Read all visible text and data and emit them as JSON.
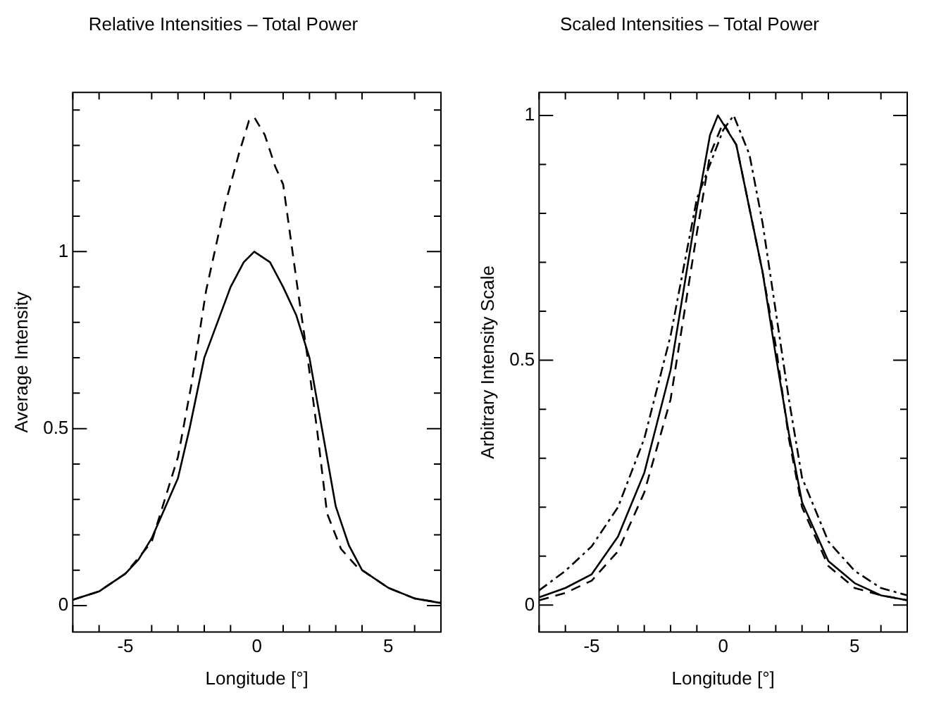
{
  "chart_data": [
    {
      "type": "line",
      "title": "Relative Intensities – Total Power",
      "xlabel": "Longitude [°]",
      "ylabel": "Average Intensity",
      "xlim": [
        -7,
        7
      ],
      "ylim": [
        -0.075,
        1.45
      ],
      "xticks": [
        {
          "value": -7,
          "label": null
        },
        {
          "value": -6,
          "label": null
        },
        -5,
        {
          "value": -4,
          "label": null
        },
        {
          "value": -3,
          "label": null
        },
        {
          "value": -2,
          "label": null
        },
        {
          "value": -1,
          "label": null
        },
        0,
        {
          "value": 1,
          "label": null
        },
        {
          "value": 2,
          "label": null
        },
        {
          "value": 3,
          "label": null
        },
        {
          "value": 4,
          "label": null
        },
        5,
        {
          "value": 6,
          "label": null
        },
        {
          "value": 7,
          "label": null
        }
      ],
      "yticks": [
        0,
        {
          "value": 0.1,
          "label": null
        },
        {
          "value": 0.2,
          "label": null
        },
        {
          "value": 0.3,
          "label": null
        },
        {
          "value": 0.4,
          "label": null
        },
        0.5,
        {
          "value": 0.6,
          "label": null
        },
        {
          "value": 0.7,
          "label": null
        },
        {
          "value": 0.8,
          "label": null
        },
        {
          "value": 0.9,
          "label": null
        },
        1,
        {
          "value": 1.1,
          "label": null
        },
        {
          "value": 1.2,
          "label": null
        },
        {
          "value": 1.3,
          "label": null
        },
        {
          "value": 1.4,
          "label": null
        }
      ],
      "grid": false,
      "legend": false,
      "marker": "none",
      "series": [
        {
          "color": "#000000",
          "line_style": "solid",
          "x": [
            -7,
            -6,
            -5,
            -4.5,
            -4,
            -3,
            -2.56,
            -2,
            -1,
            -0.5,
            -0.1,
            0.5,
            1,
            1.5,
            2,
            2.5,
            3,
            3.5,
            4,
            5,
            6,
            7
          ],
          "values": [
            0.016,
            0.04,
            0.09,
            0.13,
            0.19,
            0.36,
            0.5,
            0.7,
            0.9,
            0.97,
            1.0,
            0.97,
            0.9,
            0.82,
            0.7,
            0.49,
            0.28,
            0.17,
            0.1,
            0.05,
            0.02,
            0.007
          ]
        },
        {
          "color": "#000000",
          "line_style": "dashed",
          "x": [
            -7,
            -6,
            -5,
            -4,
            -3,
            -2.5,
            -1.93,
            -1.22,
            -0.67,
            -0.3,
            -0.1,
            0.3,
            0.7,
            1,
            1.56,
            1.93,
            2.3,
            2.67,
            3.2,
            3.8,
            5,
            6,
            7
          ],
          "values": [
            0.016,
            0.04,
            0.09,
            0.18,
            0.42,
            0.62,
            0.89,
            1.13,
            1.28,
            1.37,
            1.38,
            1.33,
            1.24,
            1.19,
            0.89,
            0.7,
            0.49,
            0.26,
            0.16,
            0.11,
            0.05,
            0.02,
            0.008
          ]
        }
      ]
    },
    {
      "type": "line",
      "title": "Scaled Intensities – Total Power",
      "xlabel": "Longitude [°]",
      "ylabel": "Arbitrary Intensity Scale",
      "xlim": [
        -7,
        7
      ],
      "ylim": [
        -0.055,
        1.047
      ],
      "xticks": [
        {
          "value": -7,
          "label": null
        },
        {
          "value": -6,
          "label": null
        },
        -5,
        {
          "value": -4,
          "label": null
        },
        {
          "value": -3,
          "label": null
        },
        {
          "value": -2,
          "label": null
        },
        {
          "value": -1,
          "label": null
        },
        0,
        {
          "value": 1,
          "label": null
        },
        {
          "value": 2,
          "label": null
        },
        {
          "value": 3,
          "label": null
        },
        {
          "value": 4,
          "label": null
        },
        5,
        {
          "value": 6,
          "label": null
        },
        {
          "value": 7,
          "label": null
        }
      ],
      "yticks": [
        0,
        {
          "value": 0.1,
          "label": null
        },
        {
          "value": 0.2,
          "label": null
        },
        {
          "value": 0.3,
          "label": null
        },
        {
          "value": 0.4,
          "label": null
        },
        0.5,
        {
          "value": 0.6,
          "label": null
        },
        {
          "value": 0.7,
          "label": null
        },
        {
          "value": 0.8,
          "label": null
        },
        {
          "value": 0.9,
          "label": null
        },
        1
      ],
      "grid": false,
      "legend": false,
      "marker": "none",
      "series": [
        {
          "color": "#000000",
          "line_style": "solid",
          "x": [
            -7,
            -6,
            -5,
            -4,
            -3,
            -2,
            -1,
            -0.5,
            -0.2,
            0.5,
            1,
            1.5,
            2,
            2.5,
            3,
            4,
            5,
            6,
            7
          ],
          "values": [
            0.016,
            0.035,
            0.063,
            0.14,
            0.27,
            0.48,
            0.81,
            0.96,
            1.0,
            0.94,
            0.81,
            0.68,
            0.51,
            0.35,
            0.21,
            0.09,
            0.045,
            0.02,
            0.01
          ]
        },
        {
          "color": "#000000",
          "line_style": "dashed",
          "x": [
            -7,
            -6,
            -5,
            -4,
            -3,
            -2,
            -1,
            -0.5,
            0,
            0.5,
            1,
            1.5,
            2,
            2.5,
            3,
            4,
            5,
            6,
            7
          ],
          "values": [
            0.01,
            0.025,
            0.05,
            0.11,
            0.23,
            0.42,
            0.76,
            0.92,
            0.985,
            0.94,
            0.81,
            0.68,
            0.53,
            0.34,
            0.2,
            0.08,
            0.035,
            0.02,
            0.01
          ]
        },
        {
          "color": "#000000",
          "line_style": "dashdot",
          "x": [
            -7,
            -6,
            -5,
            -4,
            -3,
            -2,
            -1,
            0,
            0.4,
            1,
            1.5,
            2,
            2.5,
            3,
            4,
            5,
            6,
            7
          ],
          "values": [
            0.03,
            0.07,
            0.12,
            0.2,
            0.34,
            0.55,
            0.83,
            0.97,
            1.0,
            0.92,
            0.78,
            0.6,
            0.42,
            0.26,
            0.13,
            0.07,
            0.035,
            0.02
          ]
        }
      ]
    }
  ]
}
